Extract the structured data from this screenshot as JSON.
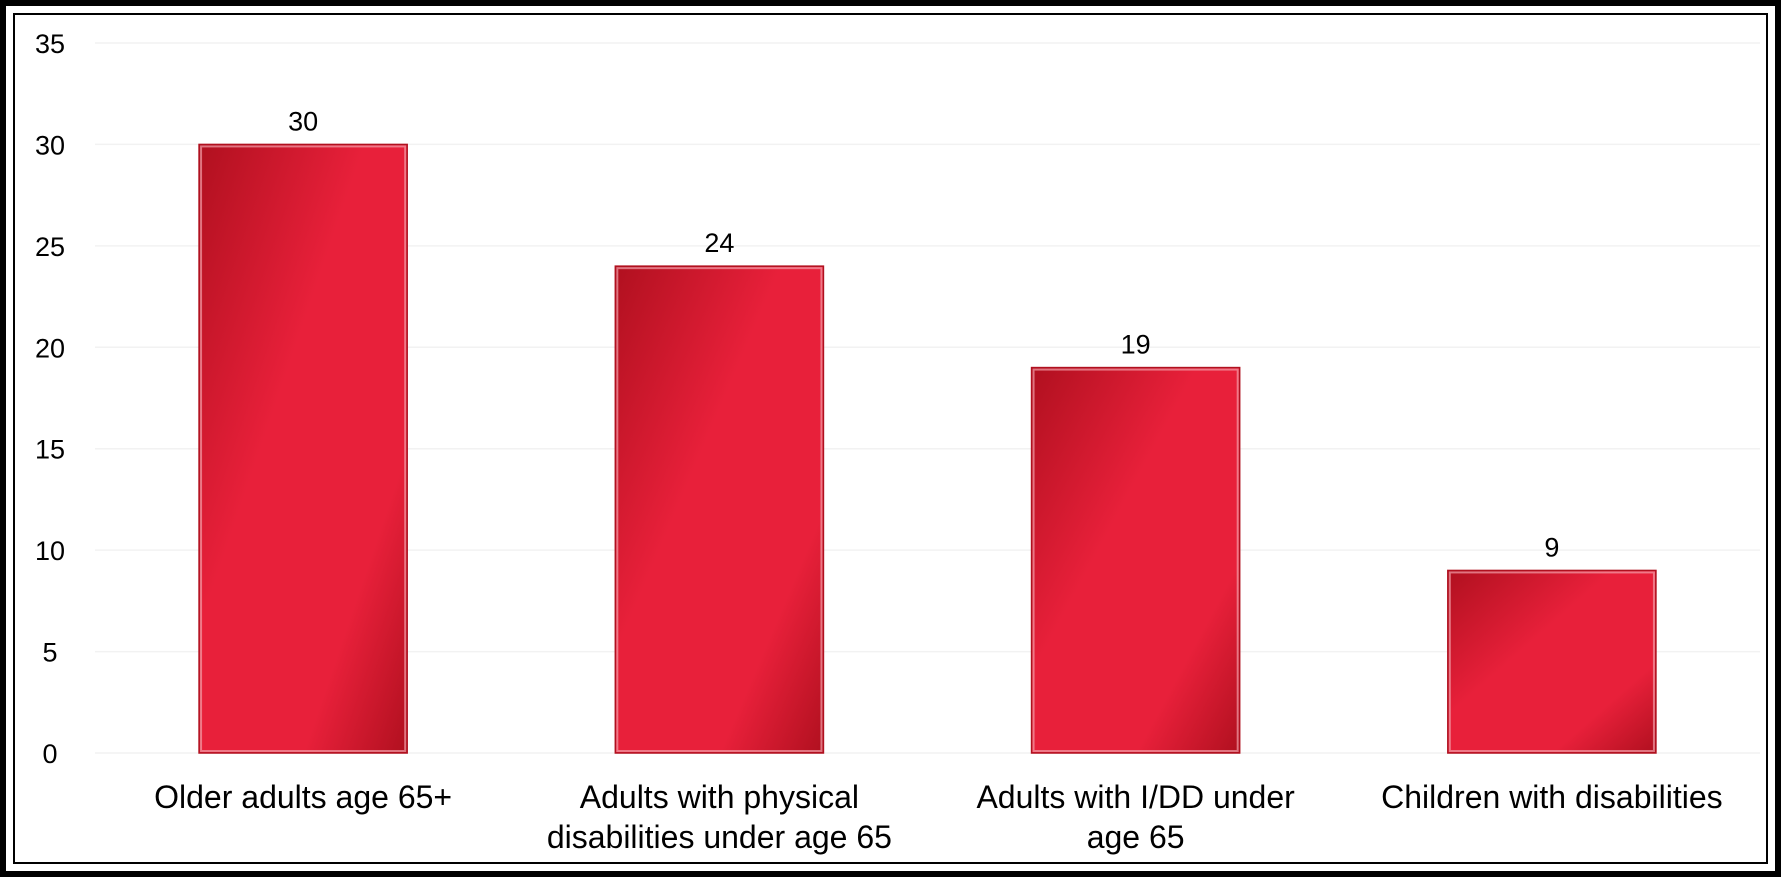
{
  "chart_data": {
    "type": "bar",
    "title": "",
    "xlabel": "",
    "ylabel": "",
    "categories": [
      [
        "Older adults age 65+"
      ],
      [
        "Adults with physical",
        "disabilities under age 65"
      ],
      [
        "Adults with I/DD under",
        "age 65"
      ],
      [
        "Children with disabilities"
      ]
    ],
    "values": [
      30,
      24,
      19,
      9
    ],
    "data_labels": [
      "30",
      "24",
      "19",
      "9"
    ],
    "ylim": [
      0,
      35
    ],
    "yticks": [
      0,
      5,
      10,
      15,
      20,
      25,
      30,
      35
    ],
    "grid": true,
    "legend": "none",
    "colors": {
      "bar_light": "#e8203a",
      "bar_dark": "#b0101f",
      "bar_edge": "#f2a0aa",
      "grid": "#f2f2f2",
      "frame": "#000000"
    }
  }
}
